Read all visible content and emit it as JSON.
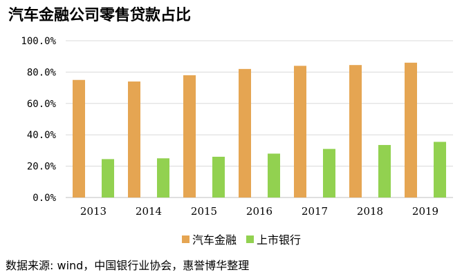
{
  "title": "汽车金融公司零售贷款占比",
  "source": "数据来源: wind，中国银行业协会，惠誉博华整理",
  "colors": {
    "auto_finance": "#E5A552",
    "listed_banks": "#92D150",
    "gridline": "#D9D9D9",
    "axis": "#BFBFBF"
  },
  "chart_data": {
    "type": "bar",
    "categories": [
      "2013",
      "2014",
      "2015",
      "2016",
      "2017",
      "2018",
      "2019"
    ],
    "series": [
      {
        "name": "汽车金融",
        "values": [
          75.0,
          74.0,
          78.0,
          82.0,
          84.0,
          84.5,
          86.0
        ]
      },
      {
        "name": "上市银行",
        "values": [
          24.5,
          25.0,
          26.0,
          28.0,
          31.0,
          33.5,
          35.5
        ]
      }
    ],
    "ylim": [
      0,
      100
    ],
    "yticks": [
      "0.0%",
      "20.0%",
      "40.0%",
      "60.0%",
      "80.0%",
      "100.0%"
    ],
    "ytick_values": [
      0,
      20,
      40,
      60,
      80,
      100
    ],
    "grid": true,
    "legend_position": "bottom",
    "xlabel": "",
    "ylabel": ""
  }
}
